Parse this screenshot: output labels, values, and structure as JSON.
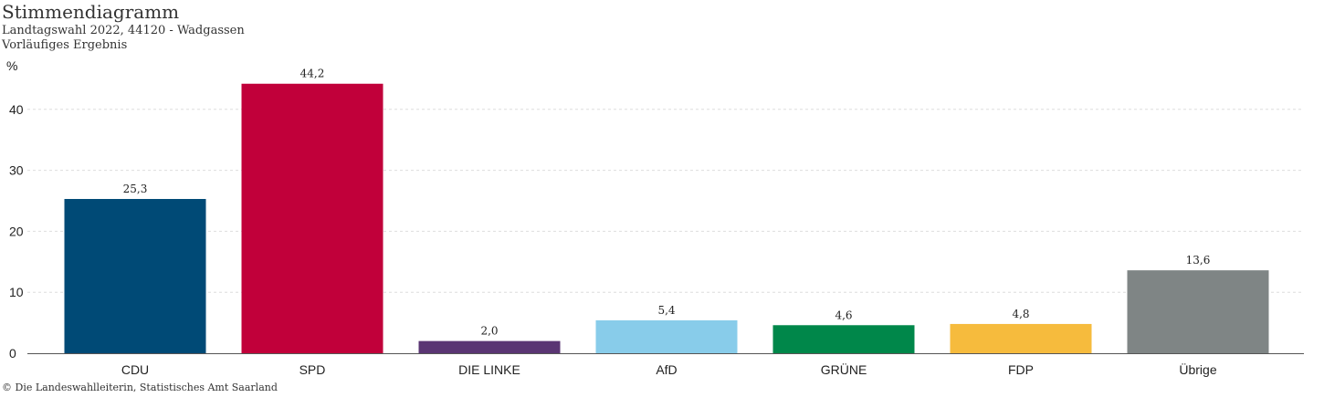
{
  "header": {
    "title": "Stimmendiagramm",
    "subtitle_line1": "Landtagswahl 2022, 44120 - Wadgassen",
    "subtitle_line2": "Vorläufiges Ergebnis"
  },
  "footer": {
    "copyright": "© Die Landeswahlleiterin, Statistisches Amt Saarland"
  },
  "chart_data": {
    "type": "bar",
    "title": "Stimmendiagramm",
    "ylabel": "%",
    "ylim": [
      0,
      49
    ],
    "yticks": [
      0,
      10,
      20,
      30,
      40
    ],
    "ytick_labels": [
      "0",
      "10",
      "20",
      "30",
      "40"
    ],
    "grid": true,
    "categories": [
      "CDU",
      "SPD",
      "DIE LINKE",
      "AfD",
      "GRÜNE",
      "FDP",
      "Übrige"
    ],
    "values": [
      25.3,
      44.2,
      2.0,
      5.4,
      4.6,
      4.8,
      13.6
    ],
    "value_labels": [
      "25,3",
      "44,2",
      "2,0",
      "5,4",
      "4,6",
      "4,8",
      "13,6"
    ],
    "colors": [
      "#004a76",
      "#c1003a",
      "#5a3573",
      "#88ccea",
      "#00874a",
      "#f6bb3d",
      "#7f8585"
    ]
  }
}
